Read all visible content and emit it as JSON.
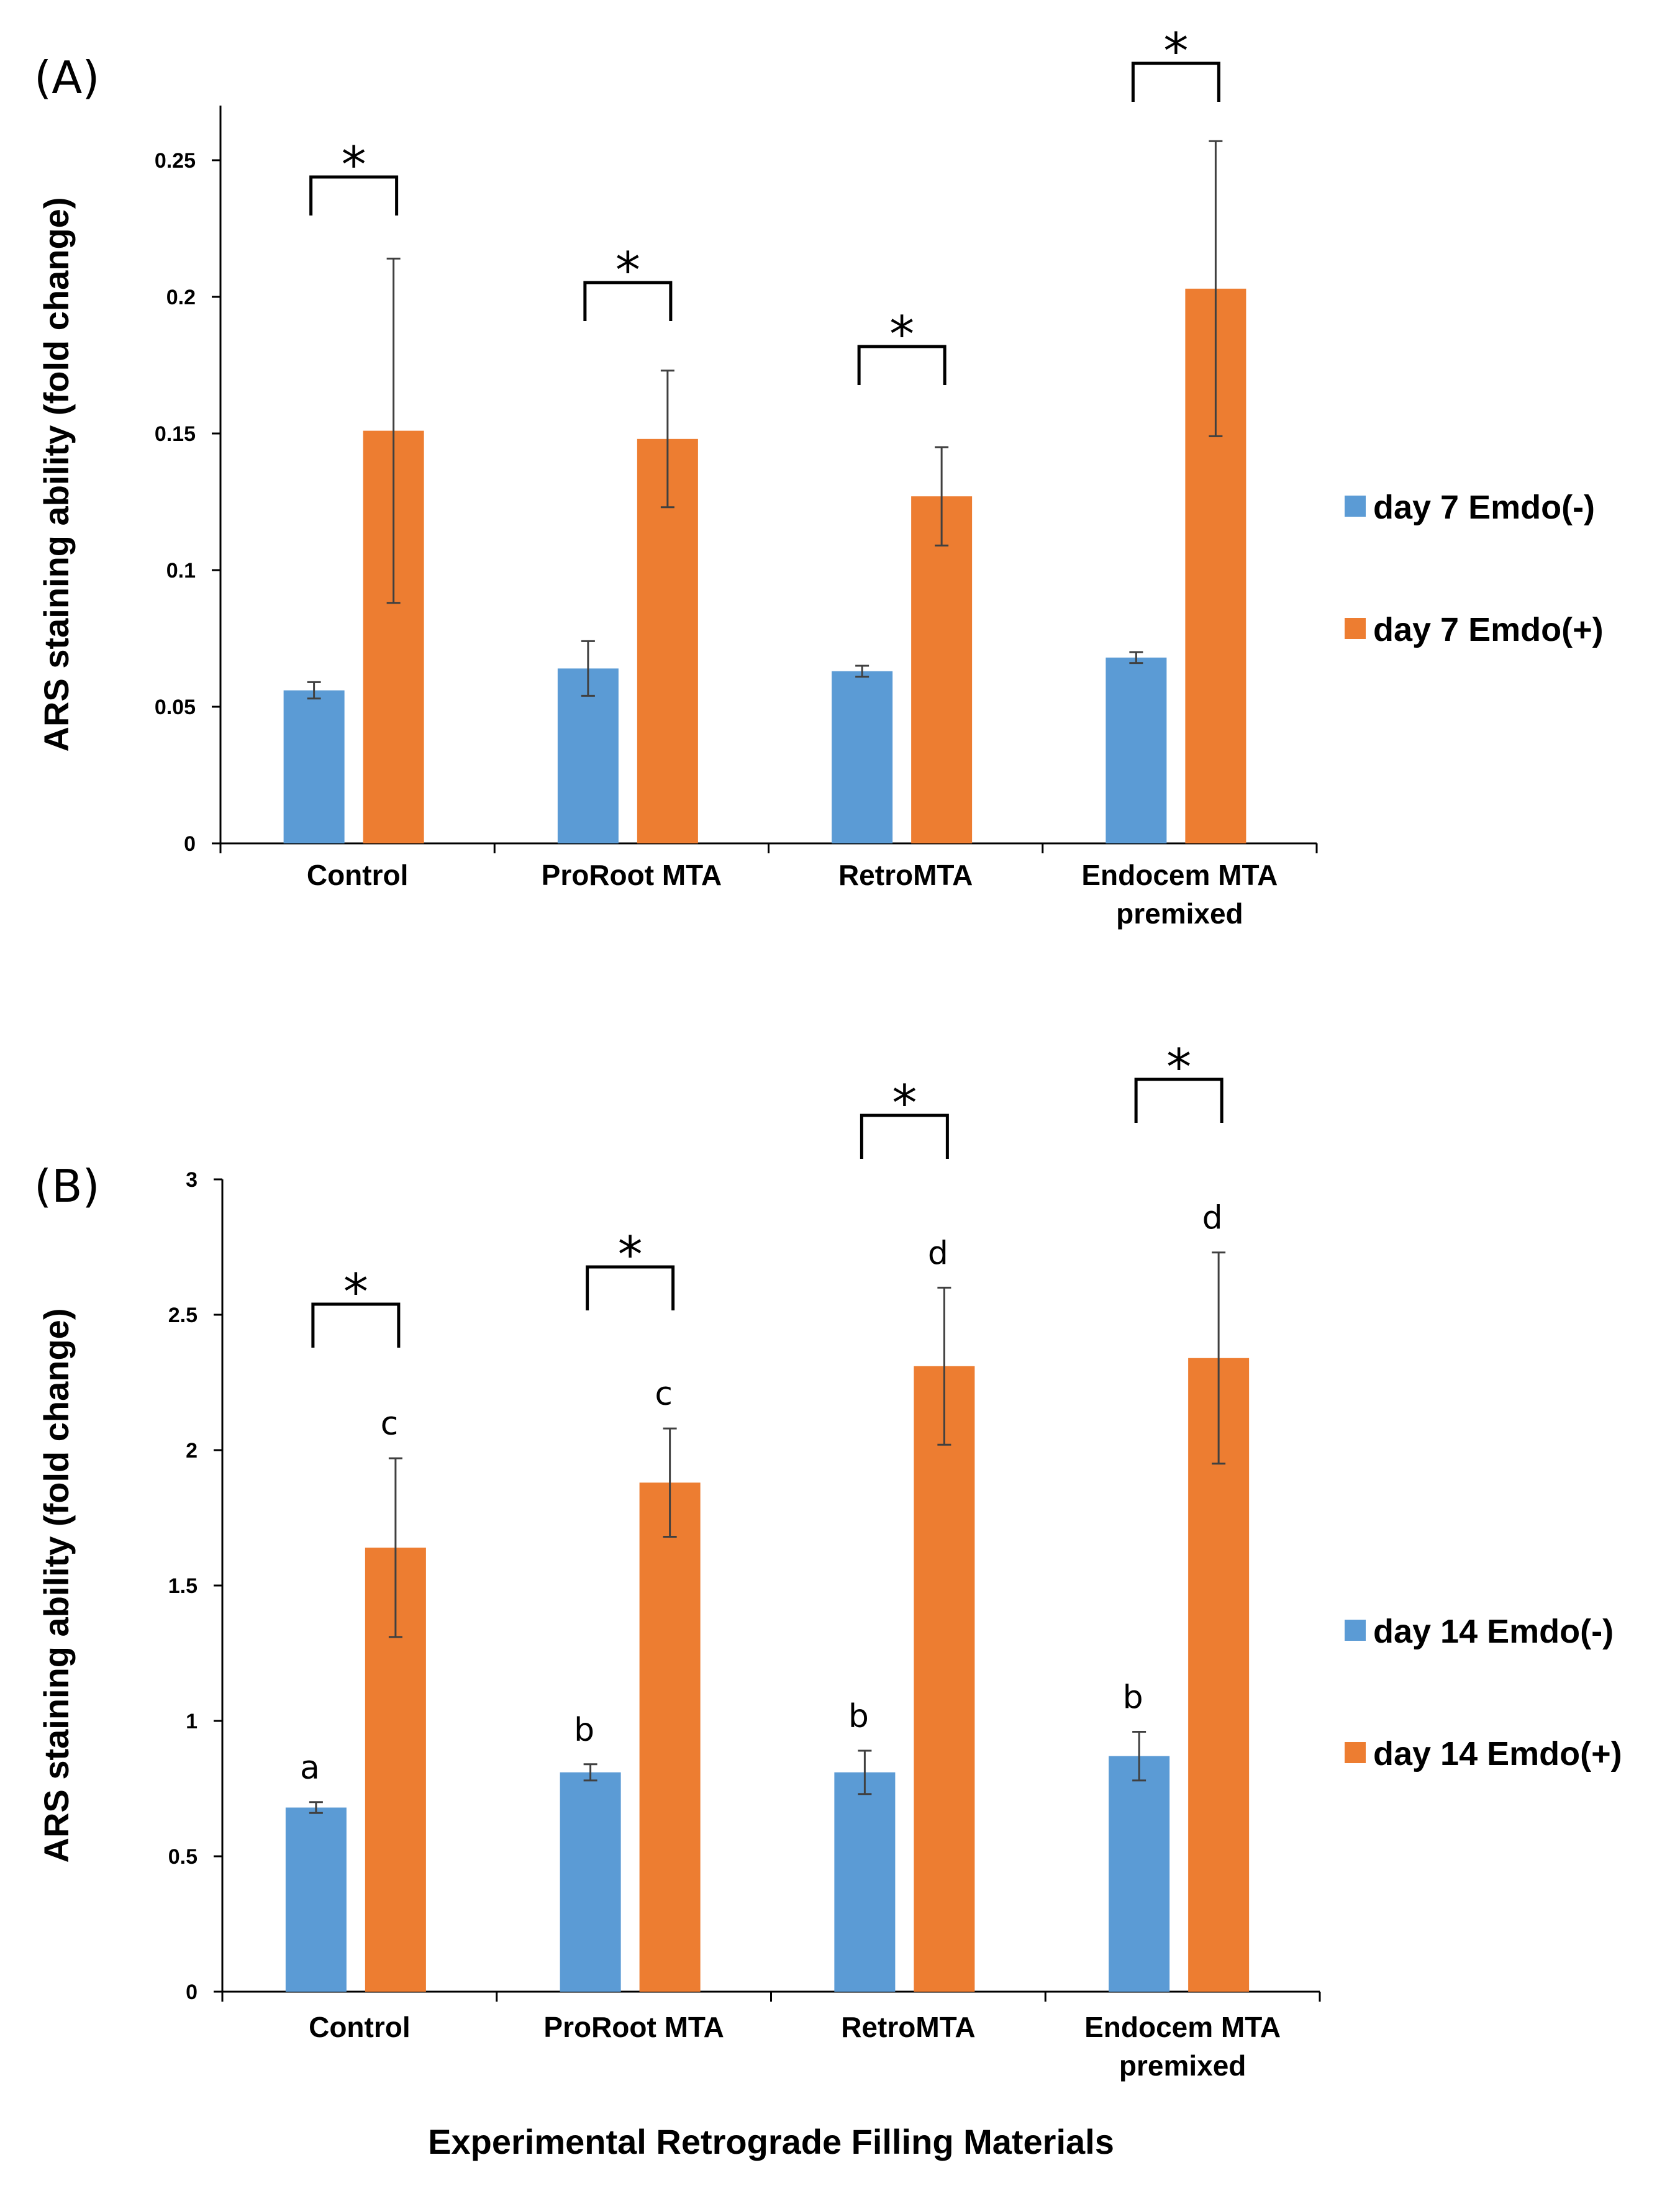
{
  "chart_data": [
    {
      "type": "bar",
      "panel_label": "(A)",
      "categories": [
        [
          "Control"
        ],
        [
          "ProRoot MTA"
        ],
        [
          "RetroMTA"
        ],
        [
          "Endocem MTA",
          "premixed"
        ]
      ],
      "ylabel": "ARS staining ability (fold change)",
      "xlabel": "",
      "ylim": [
        0,
        0.27
      ],
      "ticks": [
        0,
        0.05,
        0.1,
        0.15,
        0.2,
        0.25
      ],
      "tick_labels": [
        "0",
        "0.05",
        "0.1",
        "0.15",
        "0.2",
        "0.25"
      ],
      "series": [
        {
          "name": "day 7 Emdo(-)",
          "color": "#5B9BD5",
          "values": [
            0.056,
            0.064,
            0.063,
            0.068
          ],
          "errors": [
            0.003,
            0.01,
            0.002,
            0.002
          ]
        },
        {
          "name": "day 7 Emdo(+)",
          "color": "#ED7D31",
          "values": [
            0.151,
            0.148,
            0.127,
            0.203
          ],
          "errors": [
            0.063,
            0.025,
            0.018,
            0.054
          ]
        }
      ],
      "significance": [
        "*",
        "*",
        "*",
        "*"
      ],
      "letters": null,
      "legend_position": "right"
    },
    {
      "type": "bar",
      "panel_label": "(B)",
      "categories": [
        [
          "Control"
        ],
        [
          "ProRoot MTA"
        ],
        [
          "RetroMTA"
        ],
        [
          "Endocem MTA",
          "premixed"
        ]
      ],
      "ylabel": "ARS staining ability (fold change)",
      "xlabel": "Experimental Retrograde Filling Materials",
      "ylim": [
        0,
        3
      ],
      "ticks": [
        0,
        0.5,
        1,
        1.5,
        2,
        2.5,
        3
      ],
      "tick_labels": [
        "0",
        "0.5",
        "1",
        "1.5",
        "2",
        "2.5",
        "3"
      ],
      "series": [
        {
          "name": "day 14 Emdo(-)",
          "color": "#5B9BD5",
          "values": [
            0.68,
            0.81,
            0.81,
            0.87
          ],
          "errors": [
            0.02,
            0.03,
            0.08,
            0.09
          ]
        },
        {
          "name": "day 14 Emdo(+)",
          "color": "#ED7D31",
          "values": [
            1.64,
            1.88,
            2.31,
            2.34
          ],
          "errors": [
            0.33,
            0.2,
            0.29,
            0.39
          ]
        }
      ],
      "significance": [
        "*",
        "*",
        "*",
        "*"
      ],
      "letters": [
        [
          "a",
          "c"
        ],
        [
          "b",
          "c"
        ],
        [
          "b",
          "d"
        ],
        [
          "b",
          "d"
        ]
      ],
      "legend_position": "right"
    }
  ]
}
